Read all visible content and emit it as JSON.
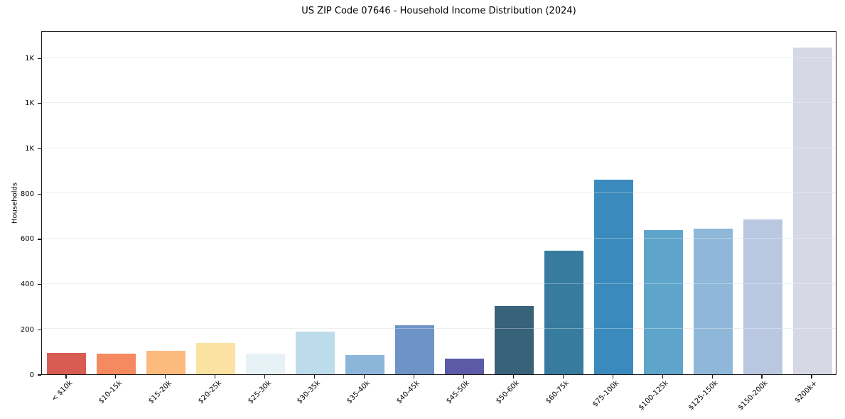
{
  "title": "US ZIP Code 07646 - Household Income Distribution (2024)",
  "chart_data": {
    "type": "bar",
    "title": "US ZIP Code 07646 - Household Income Distribution (2024)",
    "xlabel": "",
    "ylabel": "Households",
    "ylim": [
      0,
      1520
    ],
    "grid": "horizontal-light-gray",
    "legend": "none",
    "ytick_values": [
      0,
      200,
      400,
      600,
      800,
      1000,
      1200,
      1400
    ],
    "ytick_labels": [
      "0",
      "200",
      "400",
      "600",
      "800",
      "1K",
      "1K",
      "1K"
    ],
    "categories": [
      "< $10k",
      "$10-15k",
      "$15-20k",
      "$20-25k",
      "$25-30k",
      "$30-35k",
      "$35-40k",
      "$40-45k",
      "$45-50k",
      "$50-60k",
      "$60-75k",
      "$75-100k",
      "$100-125k",
      "$125-150k",
      "$150-200k",
      "$200k+"
    ],
    "values": [
      93,
      91,
      103,
      138,
      92,
      189,
      84,
      217,
      68,
      302,
      545,
      862,
      637,
      644,
      685,
      1445
    ],
    "bar_colors": [
      "#d95c52",
      "#f5895f",
      "#fcba7d",
      "#fbe2a2",
      "#e6f2f6",
      "#bcdcec",
      "#8cb5da",
      "#6d93c7",
      "#5c5aa6",
      "#38617a",
      "#377b9f",
      "#3a8abd",
      "#5fa5cb",
      "#8fb7d9",
      "#b9c8e0",
      "#d6d8e6"
    ]
  }
}
